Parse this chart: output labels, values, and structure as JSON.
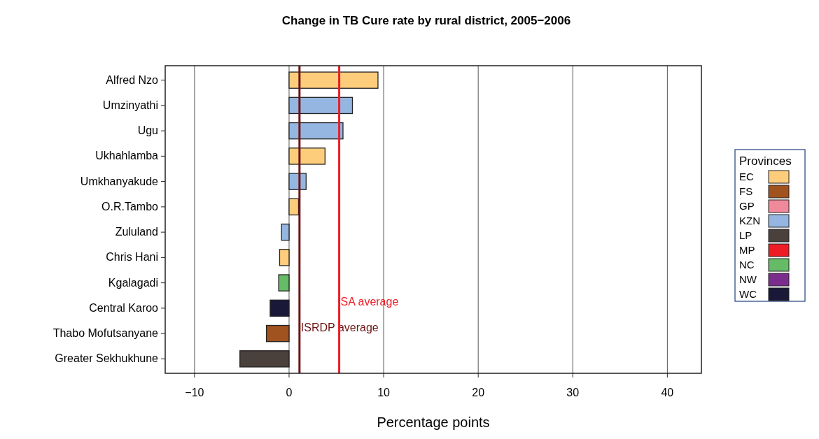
{
  "chart_data": {
    "type": "bar",
    "orientation": "horizontal",
    "title": "Change in TB Cure rate by rural district, 2005−2006",
    "xlabel": "Percentage points",
    "legend_title": "Provinces",
    "legend": "right",
    "grid": "x",
    "categories": [
      "Alfred Nzo",
      "Umzinyathi",
      "Ugu",
      "Ukhahlamba",
      "Umkhanyakude",
      "O.R.Tambo",
      "Zululand",
      "Chris Hani",
      "Kgalagadi",
      "Central Karoo",
      "Thabo Mofutsanyane",
      "Greater Sekhukhune"
    ],
    "xlim": [
      -13.1,
      43.6
    ],
    "xticks": [
      {
        "value": -10,
        "label": "−10"
      },
      0,
      10,
      20,
      30,
      40
    ],
    "series": [
      {
        "name": "EC",
        "color": "#fdcd7c",
        "values": [
          9.4,
          null,
          null,
          3.8,
          null,
          1.0,
          null,
          -1.0,
          null,
          null,
          null,
          null
        ]
      },
      {
        "name": "FS",
        "color": "#a0521f",
        "values": [
          null,
          null,
          null,
          null,
          null,
          null,
          null,
          null,
          null,
          null,
          -2.4,
          null
        ]
      },
      {
        "name": "GP",
        "color": "#f08a9b",
        "values": [
          null,
          null,
          null,
          null,
          null,
          null,
          null,
          null,
          null,
          null,
          null,
          null
        ]
      },
      {
        "name": "KZN",
        "color": "#94b6e0",
        "values": [
          null,
          6.7,
          5.7,
          null,
          1.8,
          null,
          -0.8,
          null,
          null,
          null,
          null,
          null
        ]
      },
      {
        "name": "LP",
        "color": "#4a403c",
        "values": [
          null,
          null,
          null,
          null,
          null,
          null,
          null,
          null,
          null,
          null,
          null,
          -5.2
        ]
      },
      {
        "name": "MP",
        "color": "#ee1c25",
        "values": [
          null,
          null,
          null,
          null,
          null,
          null,
          null,
          null,
          null,
          null,
          null,
          null
        ]
      },
      {
        "name": "NC",
        "color": "#66bb66",
        "values": [
          null,
          null,
          null,
          null,
          null,
          null,
          null,
          null,
          -1.1,
          null,
          null,
          null
        ]
      },
      {
        "name": "NW",
        "color": "#7b2d8e",
        "values": [
          null,
          null,
          null,
          null,
          null,
          null,
          null,
          null,
          null,
          null,
          null,
          null
        ]
      },
      {
        "name": "WC",
        "color": "#1a1838",
        "values": [
          null,
          null,
          null,
          null,
          null,
          null,
          null,
          null,
          null,
          -2.0,
          null,
          null
        ]
      }
    ],
    "ref_lines": [
      {
        "axis": "x",
        "value": 1.1,
        "label": "ISRDP average",
        "color": "#6e1414"
      },
      {
        "axis": "x",
        "value": 5.3,
        "label": "SA average",
        "color": "#ee1c25"
      }
    ]
  }
}
